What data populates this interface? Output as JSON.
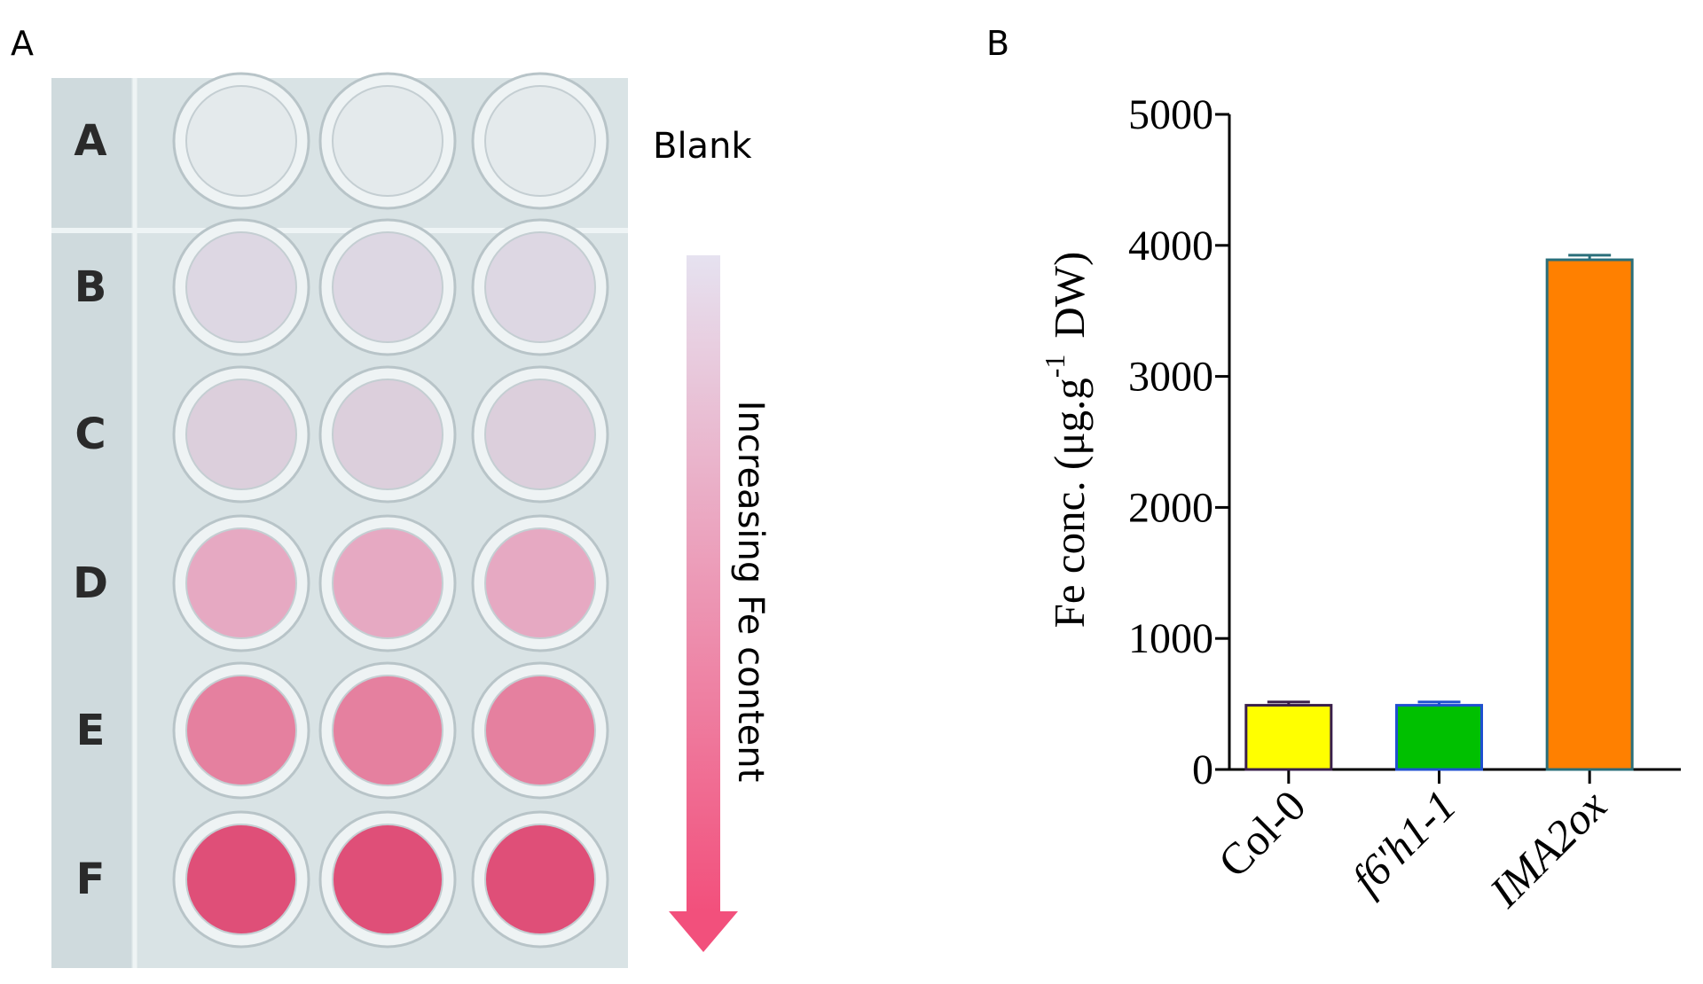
{
  "panel_a": {
    "label": "A",
    "rows": [
      "A",
      "B",
      "C",
      "D",
      "E",
      "F"
    ],
    "blank_label": "Blank",
    "arrow_label": "Increasing Fe content"
  },
  "chart_data": {
    "type": "bar",
    "panel_label": "B",
    "y_label": {
      "text": "Fe conc. (μg.g",
      "sup": "-1",
      "tail": "DW)"
    },
    "categories": [
      "Col-0",
      "f6'h1-1",
      "IMA2ox"
    ],
    "italic_categories": [
      false,
      true,
      true
    ],
    "values": [
      490,
      490,
      3890
    ],
    "errors": [
      25,
      25,
      35
    ],
    "colors": [
      "#ffff00",
      "#00c000",
      "#ff8000"
    ],
    "edgecolors": [
      "#3a1f4a",
      "#1f4fd0",
      "#2a6f7a"
    ],
    "ylim": [
      0,
      5000
    ],
    "yticks": [
      0,
      1000,
      2000,
      3000,
      4000,
      5000
    ]
  }
}
